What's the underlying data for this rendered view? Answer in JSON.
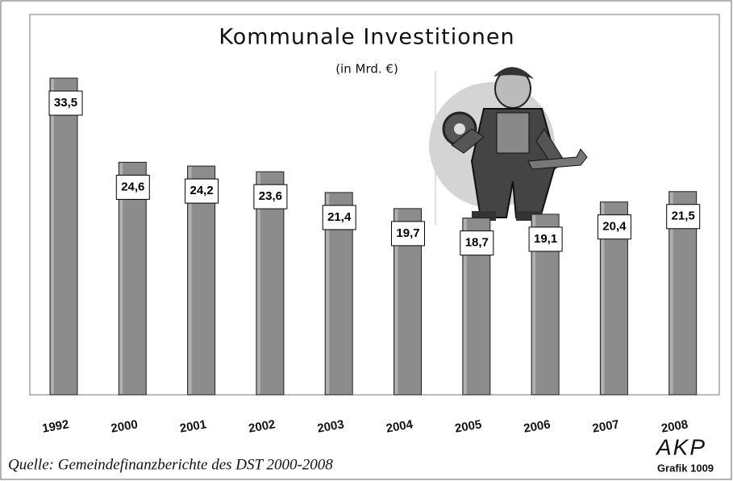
{
  "chart_data": {
    "type": "bar",
    "title": "Kommunale Investitionen",
    "subtitle": "(in Mrd. €)",
    "categories": [
      "1992",
      "2000",
      "2001",
      "2002",
      "2003",
      "2004",
      "2005",
      "2006",
      "2007",
      "2008"
    ],
    "values": [
      33.5,
      24.6,
      24.2,
      23.6,
      21.4,
      19.7,
      18.7,
      19.1,
      20.4,
      21.5
    ],
    "value_labels": [
      "33,5",
      "24,6",
      "24,2",
      "23,6",
      "21,4",
      "19,7",
      "18,7",
      "19,1",
      "20,4",
      "21,5"
    ],
    "color": "#8c8c8c"
  },
  "footer": {
    "source": "Quelle: Gemeindefinanzberichte des DST 2000-2008",
    "logo": "AKP",
    "code": "Grafik 1009"
  }
}
